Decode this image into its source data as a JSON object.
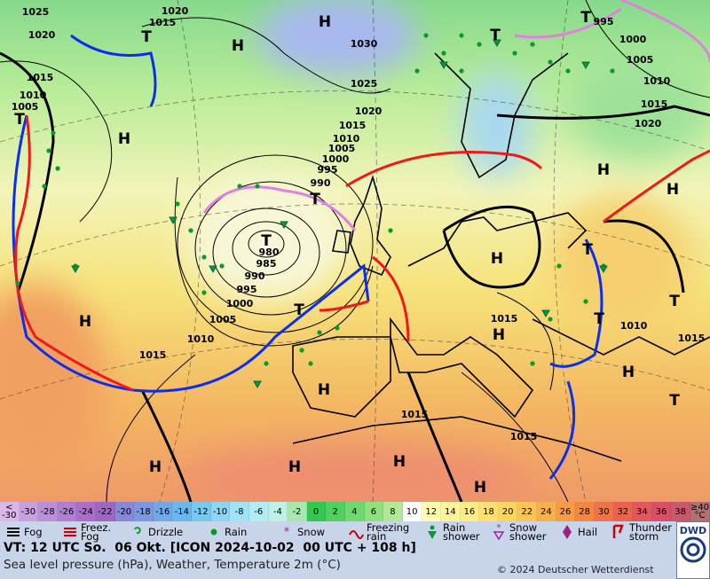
{
  "map": {
    "centers": [
      "H",
      "H",
      "T",
      "T",
      "H",
      "H",
      "H",
      "H",
      "H",
      "H",
      "H",
      "H",
      "H",
      "H",
      "T",
      "H",
      "T",
      "T",
      "T",
      "T",
      "T",
      "T",
      "T",
      "H",
      "T"
    ],
    "isobars": [
      "1025",
      "1020",
      "1015",
      "1020",
      "1015",
      "1010",
      "1005",
      "1030",
      "1025",
      "1020",
      "1015",
      "1010",
      "1005",
      "1000",
      "995",
      "990",
      "980",
      "985",
      "990",
      "995",
      "1000",
      "1005",
      "1010",
      "1015",
      "1015",
      "1010",
      "1015",
      "1015",
      "1015",
      "995",
      "1000",
      "1005",
      "1010",
      "1015",
      "1020"
    ]
  },
  "scale": {
    "labels": [
      "< -30",
      "-30",
      "-28",
      "-26",
      "-24",
      "-22",
      "-20",
      "-18",
      "-16",
      "-14",
      "-12",
      "-10",
      "-8",
      "-6",
      "-4",
      "-2",
      "0",
      "2",
      "4",
      "6",
      "8",
      "10",
      "12",
      "14",
      "16",
      "18",
      "20",
      "22",
      "24",
      "26",
      "28",
      "30",
      "32",
      "34",
      "36",
      "38",
      "≥40 °C"
    ]
  },
  "legend": [
    "Fog",
    "Freez. Fog",
    "Drizzle",
    "Rain",
    "Snow",
    "Freezing rain",
    "Rain shower",
    "Snow shower",
    "Hail",
    "Thunder storm"
  ],
  "footer": {
    "line1": "VT: 12 UTC So.  06 Okt. [ICON 2024-10-02  00 UTC + 108 h]",
    "line2": "Sea level pressure (hPa), Weather, Temperature 2m (°C)",
    "copyright": "© 2024 Deutscher Wetterdienst",
    "logo": "DWD"
  }
}
